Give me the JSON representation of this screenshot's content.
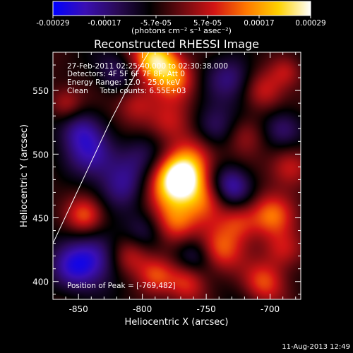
{
  "colorbar": {
    "ticks": [
      "-0.00029",
      "-0.00017",
      "-5.7e-05",
      "5.7e-05",
      "0.00017",
      "0.00029"
    ],
    "units": "(photons cm⁻² s⁻¹ asec⁻²)",
    "stops": [
      "#0000ff",
      "#3a0fb4",
      "#2a0a55",
      "#000000",
      "#6a0a10",
      "#d21414",
      "#ff7800",
      "#ffd200",
      "#ffffff"
    ]
  },
  "chart_data": {
    "type": "heatmap",
    "title": "Reconstructed RHESSI Image",
    "xlabel": "Heliocentric X (arcsec)",
    "ylabel": "Heliocentric Y (arcsec)",
    "xlim": [
      -870,
      -676
    ],
    "ylim": [
      386,
      580
    ],
    "xticks": [
      -850,
      -800,
      -750,
      -700
    ],
    "yticks": [
      400,
      450,
      500,
      550
    ],
    "info_lines": [
      "27-Feb-2011 02:25:40.000 to 02:30:38.000",
      "Detectors: 4F 5F 6F 7F 8F, Att 0",
      "Energy Range: 12.0 - 25.0 keV",
      "Clean     Total counts: 6.55E+03"
    ],
    "peak_label": "Position of Peak = [-769,482]",
    "peak": [
      -769,
      482
    ],
    "limb": [
      [
        -870,
        430
      ],
      [
        -855,
        462
      ],
      [
        -840,
        494
      ],
      [
        -825,
        526
      ],
      [
        -810,
        555
      ],
      [
        -795,
        580
      ]
    ],
    "sources": [
      {
        "x": -769,
        "y": 482,
        "v": 1.0,
        "s": 12
      },
      {
        "x": -780,
        "y": 470,
        "v": 0.55,
        "s": 16
      },
      {
        "x": -760,
        "y": 500,
        "v": 0.5,
        "s": 14
      },
      {
        "x": -775,
        "y": 445,
        "v": 0.55,
        "s": 12
      },
      {
        "x": -750,
        "y": 465,
        "v": 0.45,
        "s": 12
      },
      {
        "x": -780,
        "y": 525,
        "v": 0.45,
        "s": 12
      },
      {
        "x": -790,
        "y": 575,
        "v": 0.95,
        "s": 12
      },
      {
        "x": -775,
        "y": 560,
        "v": 0.55,
        "s": 12
      },
      {
        "x": -805,
        "y": 540,
        "v": 0.4,
        "s": 11
      },
      {
        "x": -845,
        "y": 452,
        "v": 0.55,
        "s": 10
      },
      {
        "x": -810,
        "y": 420,
        "v": 0.45,
        "s": 11
      },
      {
        "x": -790,
        "y": 405,
        "v": 0.45,
        "s": 10
      },
      {
        "x": -765,
        "y": 400,
        "v": 0.5,
        "s": 11
      },
      {
        "x": -740,
        "y": 425,
        "v": 0.55,
        "s": 12
      },
      {
        "x": -725,
        "y": 447,
        "v": 0.5,
        "s": 11
      },
      {
        "x": -700,
        "y": 452,
        "v": 0.6,
        "s": 12
      },
      {
        "x": -690,
        "y": 425,
        "v": 0.45,
        "s": 11
      },
      {
        "x": -705,
        "y": 400,
        "v": 0.5,
        "s": 11
      },
      {
        "x": -685,
        "y": 490,
        "v": 0.45,
        "s": 11
      },
      {
        "x": -720,
        "y": 515,
        "v": 0.35,
        "s": 11
      },
      {
        "x": -705,
        "y": 550,
        "v": 0.4,
        "s": 11
      },
      {
        "x": -688,
        "y": 565,
        "v": 0.35,
        "s": 9
      },
      {
        "x": -860,
        "y": 540,
        "v": 0.35,
        "s": 9
      },
      {
        "x": -840,
        "y": 500,
        "v": -0.45,
        "s": 14
      },
      {
        "x": -815,
        "y": 475,
        "v": -0.4,
        "s": 14
      },
      {
        "x": -855,
        "y": 410,
        "v": -0.5,
        "s": 14
      },
      {
        "x": -835,
        "y": 420,
        "v": -0.45,
        "s": 14
      },
      {
        "x": -730,
        "y": 475,
        "v": -0.6,
        "s": 12
      },
      {
        "x": -745,
        "y": 520,
        "v": -0.5,
        "s": 13
      },
      {
        "x": -800,
        "y": 500,
        "v": -0.35,
        "s": 13
      },
      {
        "x": -730,
        "y": 560,
        "v": -0.4,
        "s": 13
      },
      {
        "x": -690,
        "y": 520,
        "v": -0.4,
        "s": 11
      },
      {
        "x": -800,
        "y": 440,
        "v": -0.35,
        "s": 12
      },
      {
        "x": -760,
        "y": 420,
        "v": -0.35,
        "s": 11
      },
      {
        "x": -850,
        "y": 520,
        "v": -0.4,
        "s": 12
      },
      {
        "x": -820,
        "y": 565,
        "v": -0.3,
        "s": 11
      }
    ]
  },
  "footer": {
    "timestamp": "11-Aug-2013 12:49"
  }
}
